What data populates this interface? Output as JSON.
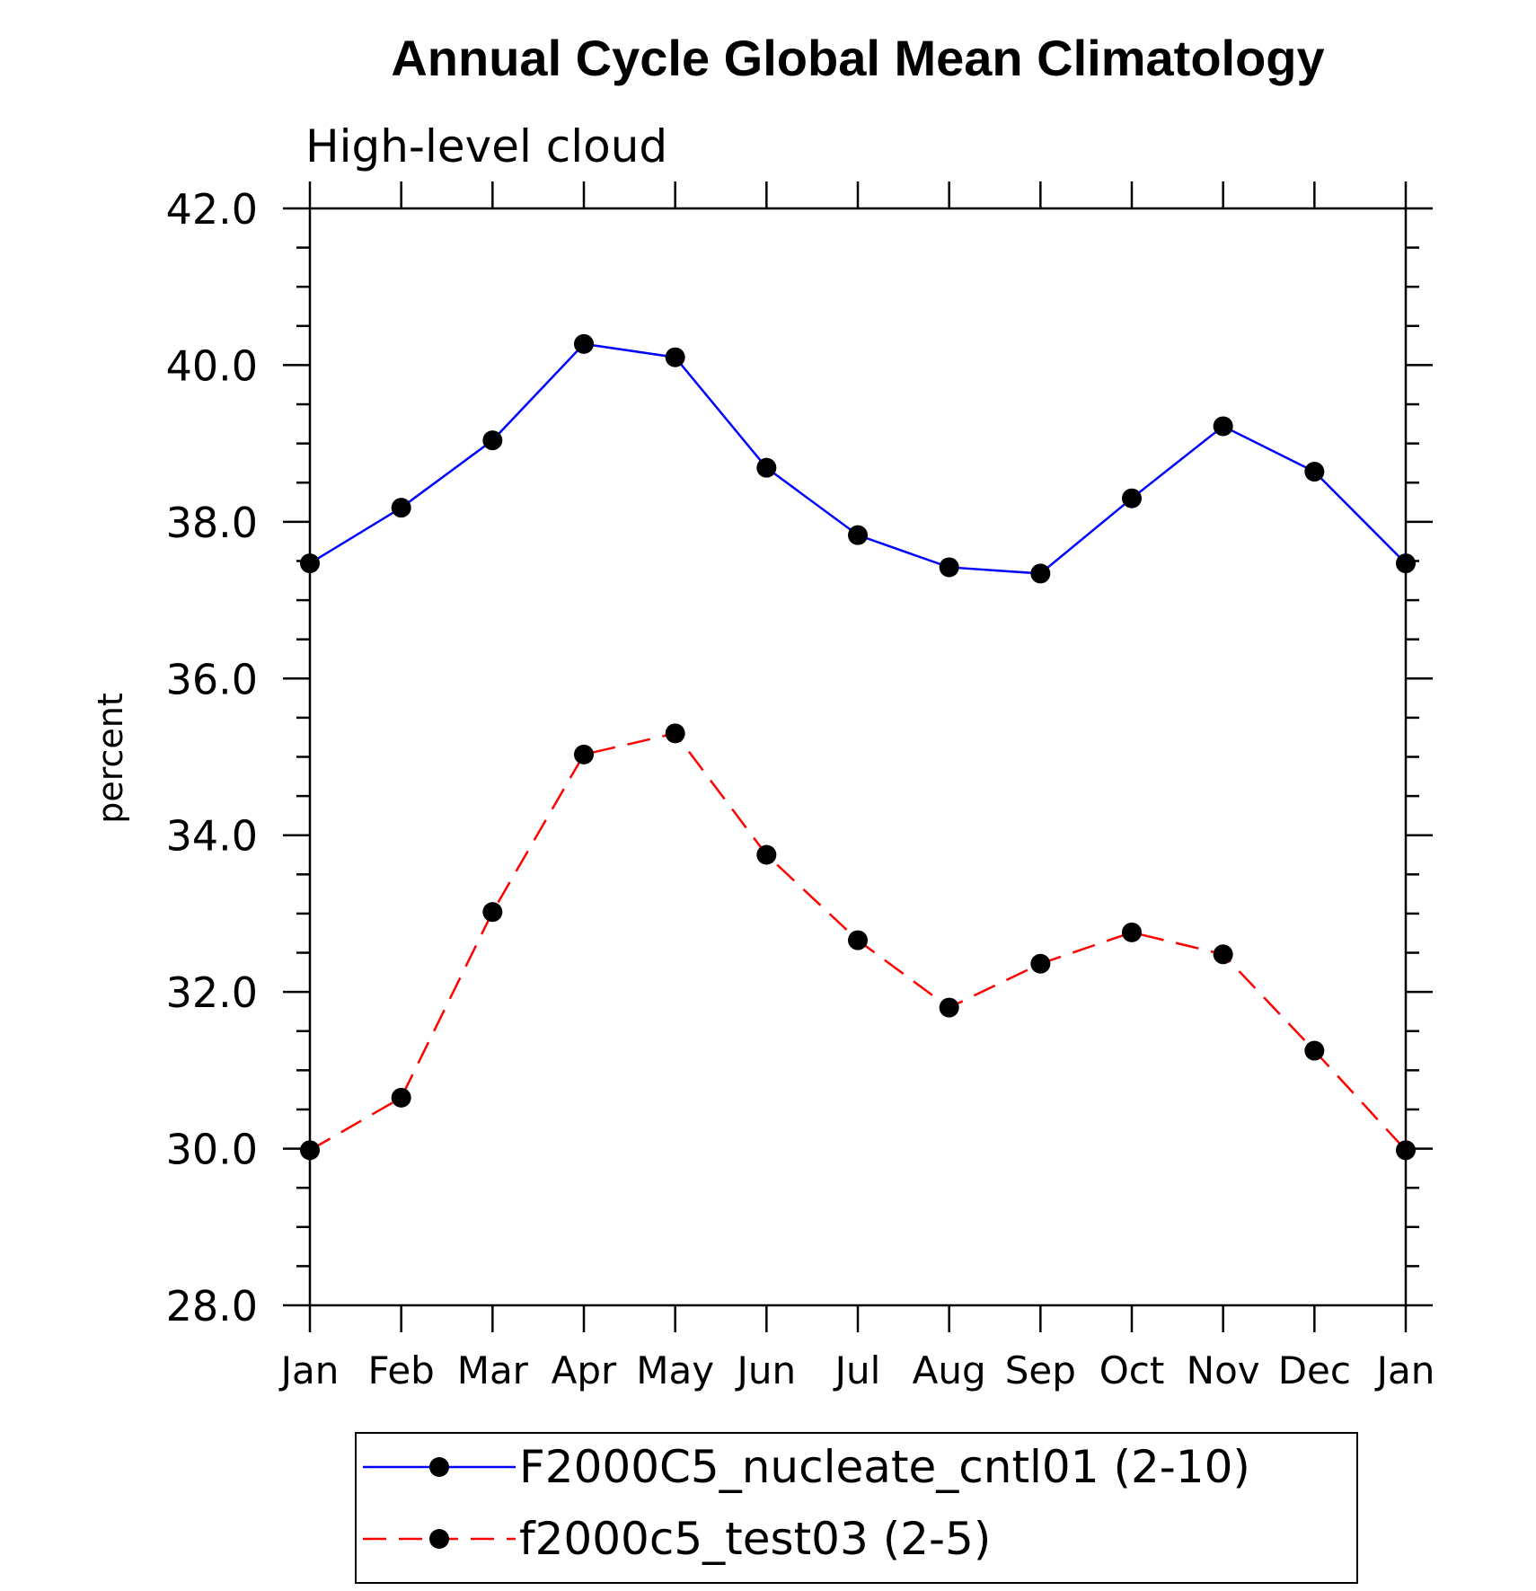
{
  "chart_data": {
    "type": "line",
    "title": "Annual Cycle Global Mean Climatology",
    "subtitle": "High-level cloud",
    "xlabel": "",
    "ylabel": "percent",
    "categories": [
      "Jan",
      "Feb",
      "Mar",
      "Apr",
      "May",
      "Jun",
      "Jul",
      "Aug",
      "Sep",
      "Oct",
      "Nov",
      "Dec",
      "Jan"
    ],
    "ylim": [
      28.0,
      42.0
    ],
    "y_ticks": [
      "28.0",
      "30.0",
      "32.0",
      "34.0",
      "36.0",
      "38.0",
      "40.0",
      "42.0"
    ],
    "grid": false,
    "legend_position": "bottom",
    "series": [
      {
        "name": "F2000C5_nucleate_cntl01 (2-10)",
        "color": "#0000ff",
        "line_style": "solid",
        "marker": "filled-circle",
        "values": [
          37.47,
          38.18,
          39.04,
          40.27,
          40.1,
          38.69,
          37.83,
          37.42,
          37.34,
          38.3,
          39.22,
          38.64,
          37.47
        ]
      },
      {
        "name": "f2000c5_test03 (2-5)",
        "color": "#ff0000",
        "line_style": "dashed",
        "marker": "filled-circle",
        "values": [
          29.98,
          30.65,
          33.02,
          35.03,
          35.3,
          33.75,
          32.66,
          31.8,
          32.36,
          32.76,
          32.48,
          31.25,
          29.98
        ]
      }
    ]
  }
}
